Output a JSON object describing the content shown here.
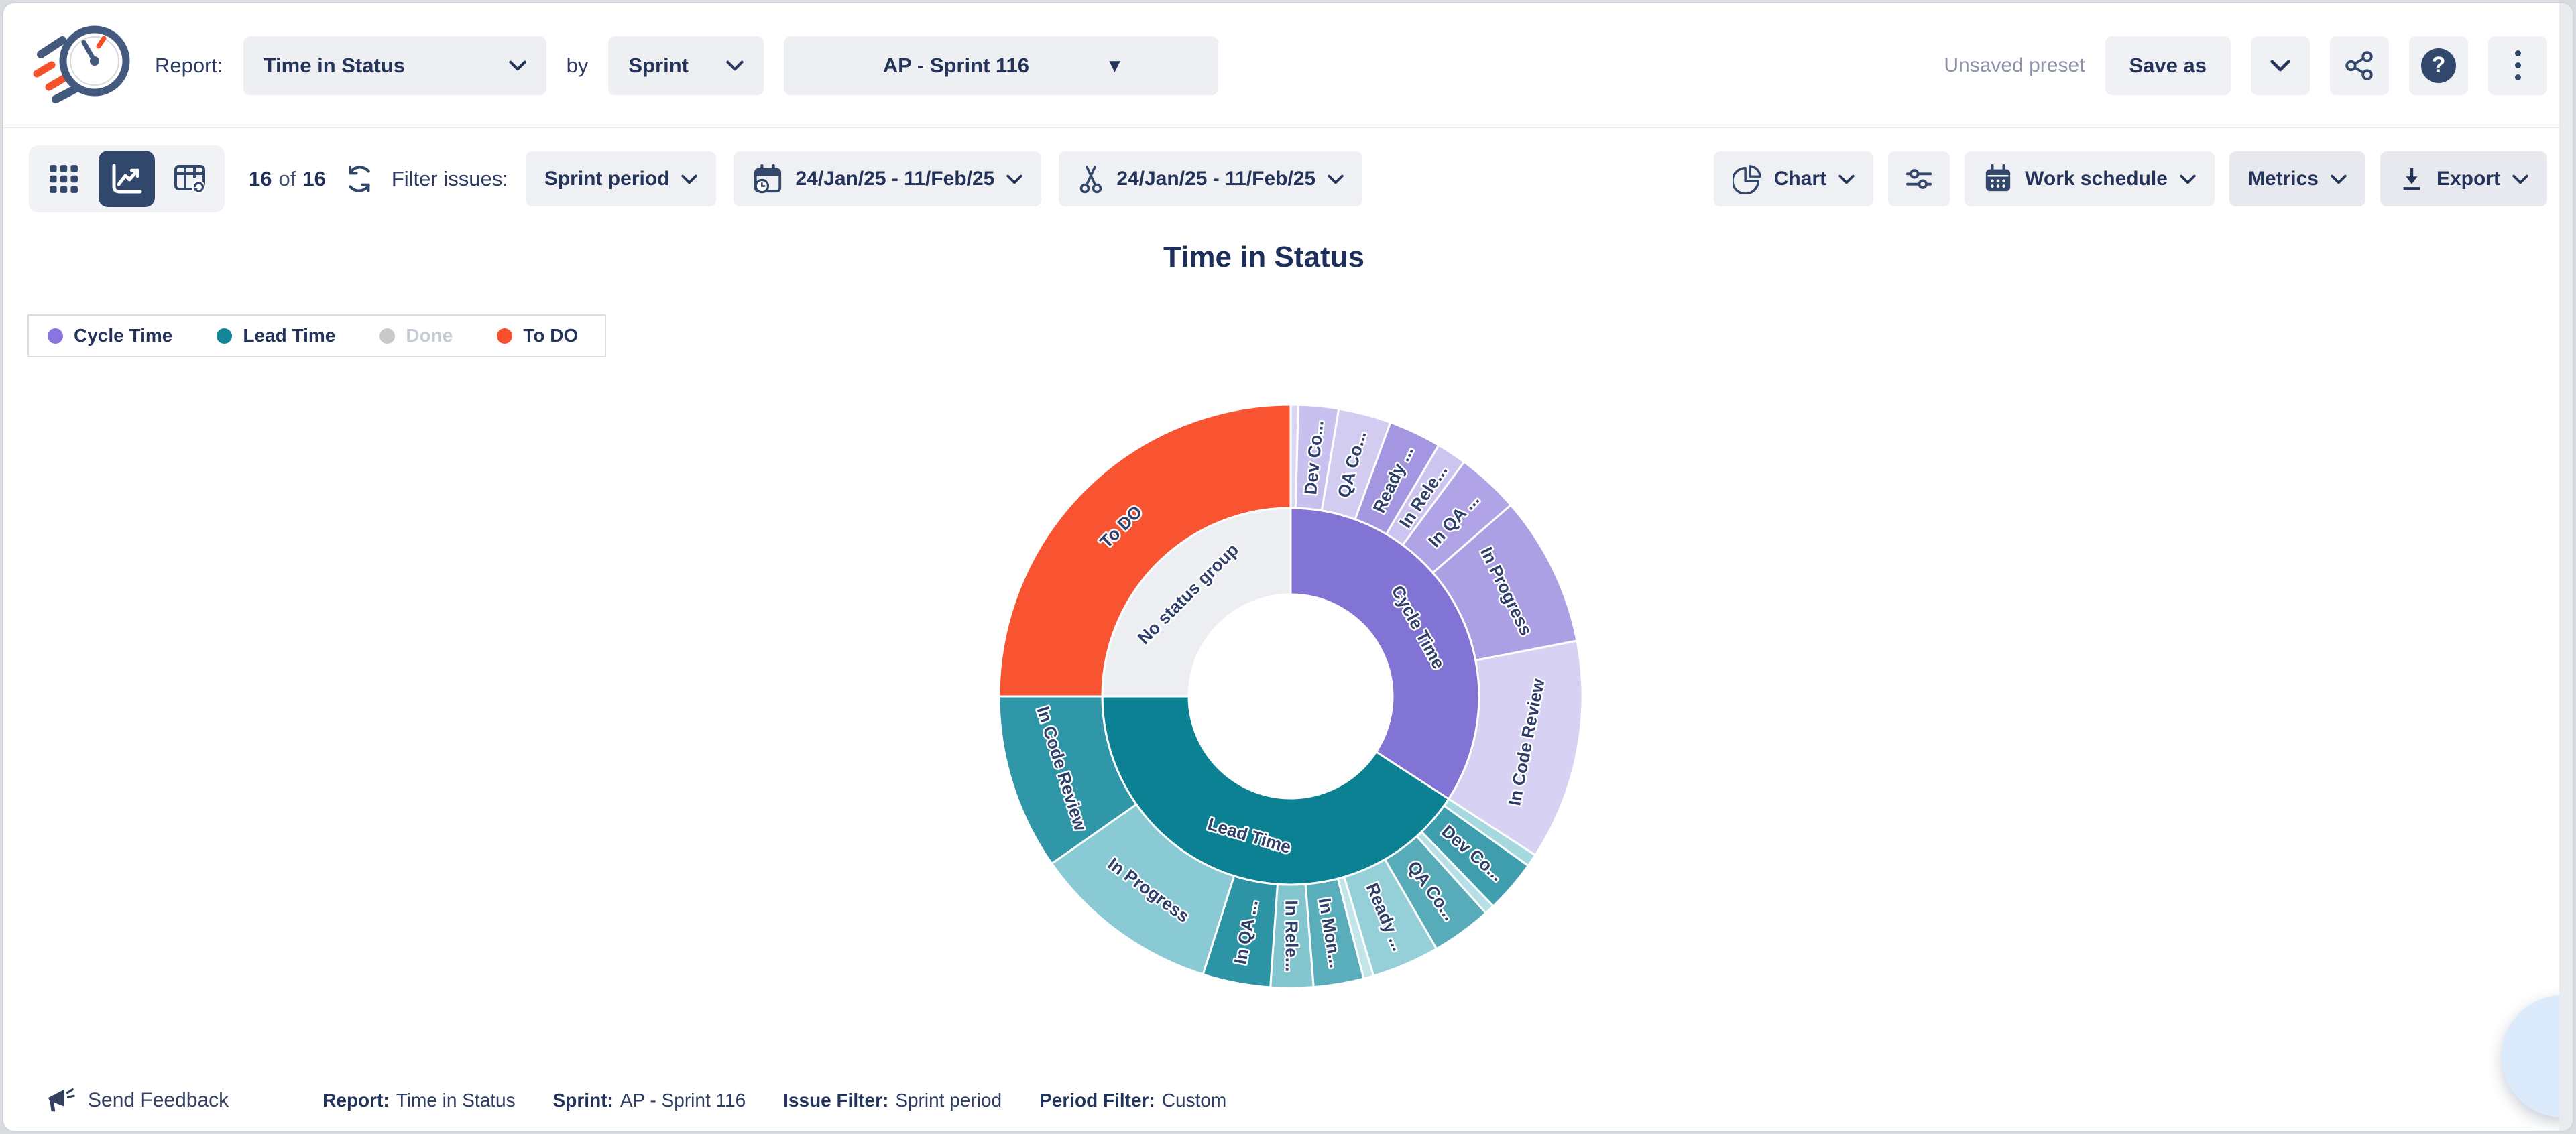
{
  "header": {
    "report_label": "Report:",
    "report_value": "Time in Status",
    "by_label": "by",
    "group_value": "Sprint",
    "sprint_value": "AP - Sprint 116",
    "preset_status": "Unsaved preset",
    "save_as_label": "Save as",
    "help_glyph": "?"
  },
  "toolbar": {
    "count_current": "16",
    "count_of": "of",
    "count_total": "16",
    "filter_label": "Filter issues:",
    "issue_filter_value": "Sprint period",
    "date_range": "24/Jan/25 - 11/Feb/25",
    "trim_range": "24/Jan/25 - 11/Feb/25",
    "chart_label": "Chart",
    "work_schedule_label": "Work schedule",
    "metrics_label": "Metrics",
    "export_label": "Export"
  },
  "chart": {
    "title": "Time in Status"
  },
  "legend": {
    "items": [
      {
        "label": "Cycle Time",
        "color": "#8b75e0",
        "disabled": false
      },
      {
        "label": "Lead Time",
        "color": "#14869a",
        "disabled": false
      },
      {
        "label": "Done",
        "color": "#c9c9c9",
        "disabled": true
      },
      {
        "label": "To DO",
        "color": "#fa502d",
        "disabled": false
      }
    ]
  },
  "chart_data": {
    "type": "sunburst",
    "title": "Time in Status",
    "angle_unit": "degrees_clockwise_from_12",
    "radii": {
      "hole": 152,
      "mid": 281,
      "outer": 435
    },
    "label_style": {
      "color": "#2e3f6b",
      "halo": "#ffffff"
    },
    "rings": {
      "inner": [
        {
          "label": "Cycle Time",
          "start": 0,
          "end": 123,
          "color": "#8274d4",
          "label_mode": "tangential"
        },
        {
          "label": "Lead Time",
          "start": 123,
          "end": 270,
          "color": "#0c8193",
          "label_mode": "tangential"
        },
        {
          "label": "No status group",
          "start": 270,
          "end": 360,
          "color": "#eceef2",
          "label_mode": "tangential"
        }
      ],
      "outer": [
        {
          "parent": "Cycle Time",
          "label": "",
          "start": 0,
          "end": 1.5,
          "color": "#dcd6f5",
          "label_mode": "none"
        },
        {
          "parent": "Cycle Time",
          "label": "Dev Co...",
          "start": 1.5,
          "end": 9.5,
          "color": "#c8c0ee",
          "label_mode": "radial"
        },
        {
          "parent": "Cycle Time",
          "label": "QA Co...",
          "start": 9.5,
          "end": 20,
          "color": "#d3ccf1",
          "label_mode": "radial"
        },
        {
          "parent": "Cycle Time",
          "label": "Ready ...",
          "start": 20,
          "end": 30.5,
          "color": "#a496e1",
          "label_mode": "radial"
        },
        {
          "parent": "Cycle Time",
          "label": "In Rele...",
          "start": 30.5,
          "end": 36.5,
          "color": "#cdc5f0",
          "label_mode": "radial"
        },
        {
          "parent": "Cycle Time",
          "label": "In QA ...",
          "start": 36.5,
          "end": 49,
          "color": "#b0a3e6",
          "label_mode": "radial"
        },
        {
          "parent": "Cycle Time",
          "label": "In Progress",
          "start": 49,
          "end": 79,
          "color": "#aca0e4",
          "label_mode": "tangential"
        },
        {
          "parent": "Cycle Time",
          "label": "In Code Review",
          "start": 79,
          "end": 123,
          "color": "#d7d2f3",
          "label_mode": "tangential"
        },
        {
          "parent": "Lead Time",
          "label": "",
          "start": 123,
          "end": 125.5,
          "color": "#a6d8df",
          "label_mode": "none"
        },
        {
          "parent": "Lead Time",
          "label": "Dev Co...",
          "start": 125.5,
          "end": 136,
          "color": "#3f9eae",
          "label_mode": "radial"
        },
        {
          "parent": "Lead Time",
          "label": "",
          "start": 136,
          "end": 138,
          "color": "#b7e0e6",
          "label_mode": "none"
        },
        {
          "parent": "Lead Time",
          "label": "QA Co...",
          "start": 138,
          "end": 150,
          "color": "#58acba",
          "label_mode": "radial"
        },
        {
          "parent": "Lead Time",
          "label": "Ready ...",
          "start": 150,
          "end": 163.5,
          "color": "#95cfd8",
          "label_mode": "radial"
        },
        {
          "parent": "Lead Time",
          "label": "",
          "start": 163.5,
          "end": 165.5,
          "color": "#c2e5ea",
          "label_mode": "none"
        },
        {
          "parent": "Lead Time",
          "label": "In Mon...",
          "start": 165.5,
          "end": 175.5,
          "color": "#5aaebc",
          "label_mode": "radial"
        },
        {
          "parent": "Lead Time",
          "label": "In Rele...",
          "start": 175.5,
          "end": 184,
          "color": "#83c5cf",
          "label_mode": "radial"
        },
        {
          "parent": "Lead Time",
          "label": "In QA ...",
          "start": 184,
          "end": 197.5,
          "color": "#2d94a5",
          "label_mode": "radial"
        },
        {
          "parent": "Lead Time",
          "label": "In Progress",
          "start": 197.5,
          "end": 235,
          "color": "#8acad4",
          "label_mode": "tangential"
        },
        {
          "parent": "Lead Time",
          "label": "In Code Review",
          "start": 235,
          "end": 270,
          "color": "#3097a8",
          "label_mode": "tangential"
        },
        {
          "parent": "No status group",
          "label": "To DO",
          "start": 270,
          "end": 360,
          "color": "#f95431",
          "label_mode": "tangential"
        }
      ]
    }
  },
  "footer": {
    "feedback_label": "Send Feedback",
    "pairs": [
      {
        "label": "Report:",
        "value": "Time in Status"
      },
      {
        "label": "Sprint:",
        "value": "AP - Sprint 116"
      },
      {
        "label": "Issue Filter:",
        "value": "Sprint period"
      },
      {
        "label": "Period Filter:",
        "value": "Custom"
      }
    ]
  },
  "colors": {
    "navy": "#31476b",
    "orange": "#f4502a",
    "teal": "#0c8193",
    "purple": "#8274d4",
    "pill_bg": "#edeff2"
  }
}
